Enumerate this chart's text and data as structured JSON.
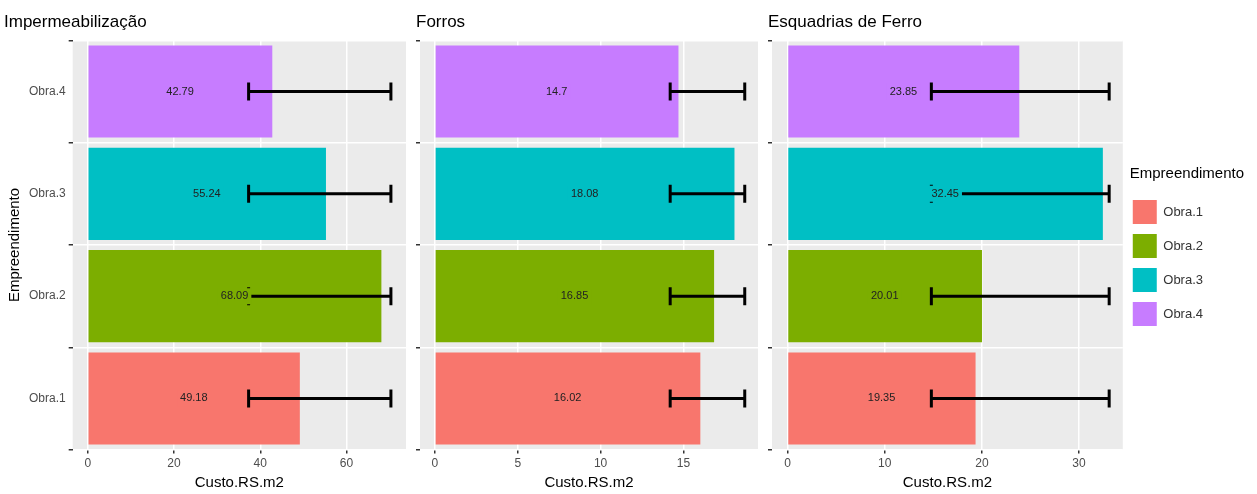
{
  "chart_data": [
    {
      "type": "bar",
      "orientation": "horizontal",
      "title": "Impermeabilização",
      "xlabel": "Custo.RS.m2",
      "ylabel": "Empreendimento",
      "categories": [
        "Obra.4",
        "Obra.3",
        "Obra.2",
        "Obra.1"
      ],
      "values": [
        42.79,
        55.24,
        68.09,
        49.18
      ],
      "colors": [
        "#c77cff",
        "#00bfc4",
        "#7cae00",
        "#f8766d"
      ],
      "errors": [
        [
          37.3,
          70.3
        ],
        [
          37.3,
          70.3
        ],
        [
          37.3,
          70.3
        ],
        [
          37.3,
          70.3
        ]
      ],
      "data_labels": true,
      "xlim": [
        -3.5,
        73.8
      ],
      "xticks": [
        0,
        20,
        40,
        60
      ],
      "grid": true,
      "legend": false
    },
    {
      "type": "bar",
      "orientation": "horizontal",
      "title": "Forros",
      "xlabel": "Custo.RS.m2",
      "categories": [
        null,
        null,
        null,
        null
      ],
      "values": [
        14.7,
        18.08,
        16.85,
        16.02
      ],
      "colors": [
        "#c77cff",
        "#00bfc4",
        "#7cae00",
        "#f8766d"
      ],
      "errors": [
        [
          14.2,
          18.7
        ],
        [
          14.2,
          18.7
        ],
        [
          14.2,
          18.7
        ],
        [
          14.2,
          18.7
        ]
      ],
      "data_labels": true,
      "xlim": [
        -0.9,
        19.5
      ],
      "xticks": [
        0,
        5,
        10,
        15
      ],
      "grid": true,
      "legend": false,
      "tick_labels": "x"
    },
    {
      "type": "bar",
      "orientation": "horizontal",
      "title": "Esquadrias de Ferro",
      "xlabel": "Custo.RS.m2",
      "legend_title": "Empreendimento",
      "categories": [
        null,
        null,
        null,
        null
      ],
      "series": [
        {
          "name": "Obra.1",
          "color": "#f8766d",
          "values": [
            null,
            null,
            null,
            19.35
          ],
          "errors": [
            null,
            null,
            null,
            [
              14.8,
              33.1
            ]
          ]
        },
        {
          "name": "Obra.2",
          "color": "#7cae00",
          "values": [
            null,
            null,
            20.01,
            null
          ],
          "errors": [
            null,
            null,
            [
              14.8,
              33.1
            ],
            null
          ]
        },
        {
          "name": "Obra.3",
          "color": "#00bfc4",
          "values": [
            null,
            32.45,
            null,
            null
          ],
          "errors": [
            null,
            [
              14.8,
              33.1
            ],
            null,
            null
          ]
        },
        {
          "name": "Obra.4",
          "color": "#c77cff",
          "values": [
            23.85,
            null,
            null,
            null
          ],
          "errors": [
            [
              14.8,
              33.1
            ],
            null,
            null,
            null
          ]
        }
      ],
      "data_labels": true,
      "xlim": [
        -1.6,
        34.5
      ],
      "xticks": [
        0,
        10,
        20,
        30
      ],
      "grid": true,
      "legend": "right",
      "tick_labels": "x"
    }
  ]
}
